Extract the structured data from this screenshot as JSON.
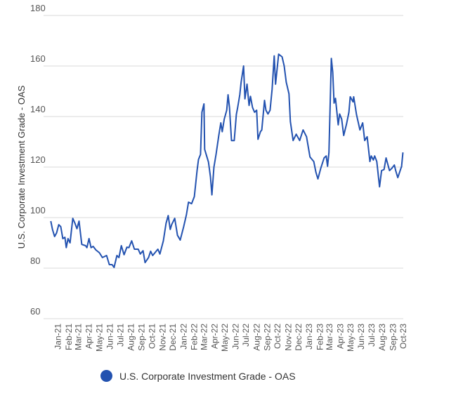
{
  "chart_data": {
    "type": "line",
    "title": "",
    "xlabel": "",
    "ylabel": "U.S. Corporate Investment Grade - OAS",
    "ylim": [
      60,
      180
    ],
    "yticks": [
      60,
      80,
      100,
      120,
      140,
      160,
      180
    ],
    "xlim": [
      "2020-11-20",
      "2023-10-01"
    ],
    "xticks": [
      "Jan-21",
      "Feb-21",
      "Mar-21",
      "Apr-21",
      "May-21",
      "Jun-21",
      "Jul-21",
      "Aug-21",
      "Sep-21",
      "Oct-21",
      "Nov-21",
      "Dec-21",
      "Jan-22",
      "Feb-22",
      "Mar-22",
      "Apr-22",
      "May-22",
      "Jun-22",
      "Jul-22",
      "Aug-22",
      "Sep-22",
      "Oct-22",
      "Nov-22",
      "Dec-22",
      "Jan-23",
      "Feb-23",
      "Mar-23",
      "Apr-23",
      "May-23",
      "Jun-23",
      "Jul-23",
      "Aug-23",
      "Sep-23",
      "Oct-23"
    ],
    "grid": true,
    "legend_position": "bottom",
    "series": [
      {
        "name": "U.S. Corporate Investment Grade - OAS",
        "color": "#2352b0",
        "points": [
          [
            "2020-12-11",
            98.6
          ],
          [
            "2020-12-16",
            95.3
          ],
          [
            "2020-12-22",
            92.5
          ],
          [
            "2020-12-28",
            94
          ],
          [
            "2021-01-03",
            97.2
          ],
          [
            "2021-01-09",
            96.4
          ],
          [
            "2021-01-15",
            91.7
          ],
          [
            "2021-01-21",
            92.2
          ],
          [
            "2021-01-25",
            88.1
          ],
          [
            "2021-01-30",
            91.7
          ],
          [
            "2021-02-05",
            90
          ],
          [
            "2021-02-13",
            99.7
          ],
          [
            "2021-02-19",
            97.8
          ],
          [
            "2021-02-25",
            95.6
          ],
          [
            "2021-03-03",
            98.6
          ],
          [
            "2021-03-11",
            89.4
          ],
          [
            "2021-03-22",
            88.9
          ],
          [
            "2021-03-26",
            88.1
          ],
          [
            "2021-04-01",
            91.7
          ],
          [
            "2021-04-07",
            88.1
          ],
          [
            "2021-04-13",
            88.6
          ],
          [
            "2021-04-21",
            87.2
          ],
          [
            "2021-05-01",
            86.1
          ],
          [
            "2021-05-10",
            84.2
          ],
          [
            "2021-05-22",
            85
          ],
          [
            "2021-05-30",
            81.4
          ],
          [
            "2021-06-07",
            81.4
          ],
          [
            "2021-06-13",
            80.3
          ],
          [
            "2021-06-21",
            85
          ],
          [
            "2021-06-27",
            84.2
          ],
          [
            "2021-07-04",
            88.9
          ],
          [
            "2021-07-12",
            85.3
          ],
          [
            "2021-07-20",
            88.3
          ],
          [
            "2021-07-26",
            88.1
          ],
          [
            "2021-08-03",
            90.8
          ],
          [
            "2021-08-11",
            87.5
          ],
          [
            "2021-08-22",
            87.5
          ],
          [
            "2021-08-28",
            85.6
          ],
          [
            "2021-09-05",
            86.9
          ],
          [
            "2021-09-11",
            82.2
          ],
          [
            "2021-09-21",
            84.2
          ],
          [
            "2021-09-27",
            86.7
          ],
          [
            "2021-10-03",
            85
          ],
          [
            "2021-10-18",
            87.5
          ],
          [
            "2021-10-24",
            85.6
          ],
          [
            "2021-11-03",
            90.8
          ],
          [
            "2021-11-11",
            97.8
          ],
          [
            "2021-11-17",
            100.8
          ],
          [
            "2021-11-23",
            95.3
          ],
          [
            "2021-11-27",
            97.2
          ],
          [
            "2021-12-06",
            99.7
          ],
          [
            "2021-12-14",
            93
          ],
          [
            "2021-12-22",
            91.1
          ],
          [
            "2022-01-01",
            96.4
          ],
          [
            "2022-01-09",
            101.1
          ],
          [
            "2022-01-15",
            106.1
          ],
          [
            "2022-01-24",
            105.5
          ],
          [
            "2022-02-01",
            108.3
          ],
          [
            "2022-02-09",
            118.6
          ],
          [
            "2022-02-13",
            123
          ],
          [
            "2022-02-19",
            125
          ],
          [
            "2022-02-23",
            141.7
          ],
          [
            "2022-03-01",
            145
          ],
          [
            "2022-03-03",
            127
          ],
          [
            "2022-03-14",
            122
          ],
          [
            "2022-03-20",
            116
          ],
          [
            "2022-03-24",
            109
          ],
          [
            "2022-03-30",
            120
          ],
          [
            "2022-04-05",
            125
          ],
          [
            "2022-04-13",
            132.5
          ],
          [
            "2022-04-19",
            137.5
          ],
          [
            "2022-04-23",
            134
          ],
          [
            "2022-04-29",
            139
          ],
          [
            "2022-05-06",
            142.5
          ],
          [
            "2022-05-10",
            148.6
          ],
          [
            "2022-05-14",
            143.6
          ],
          [
            "2022-05-20",
            130.5
          ],
          [
            "2022-05-28",
            130.5
          ],
          [
            "2022-06-03",
            140.8
          ],
          [
            "2022-06-07",
            143.6
          ],
          [
            "2022-06-13",
            148.6
          ],
          [
            "2022-06-17",
            153.6
          ],
          [
            "2022-06-24",
            160
          ],
          [
            "2022-06-28",
            147
          ],
          [
            "2022-07-04",
            152.8
          ],
          [
            "2022-07-10",
            144.4
          ],
          [
            "2022-07-14",
            148
          ],
          [
            "2022-07-20",
            143.6
          ],
          [
            "2022-07-26",
            141.7
          ],
          [
            "2022-08-01",
            142.5
          ],
          [
            "2022-08-05",
            131
          ],
          [
            "2022-08-12",
            134
          ],
          [
            "2022-08-16",
            134.7
          ],
          [
            "2022-08-24",
            146.4
          ],
          [
            "2022-08-28",
            142.5
          ],
          [
            "2022-09-03",
            141
          ],
          [
            "2022-09-09",
            142.5
          ],
          [
            "2022-09-15",
            150.8
          ],
          [
            "2022-09-21",
            164
          ],
          [
            "2022-09-25",
            152.8
          ],
          [
            "2022-10-04",
            164.7
          ],
          [
            "2022-10-14",
            163.6
          ],
          [
            "2022-10-20",
            160
          ],
          [
            "2022-10-26",
            153.6
          ],
          [
            "2022-11-03",
            149
          ],
          [
            "2022-11-07",
            138
          ],
          [
            "2022-11-15",
            130.5
          ],
          [
            "2022-11-24",
            133
          ],
          [
            "2022-12-04",
            130.5
          ],
          [
            "2022-12-14",
            134.7
          ],
          [
            "2022-12-24",
            132
          ],
          [
            "2023-01-03",
            124
          ],
          [
            "2023-01-14",
            122.2
          ],
          [
            "2023-01-20",
            118
          ],
          [
            "2023-01-26",
            115.3
          ],
          [
            "2023-02-03",
            119.4
          ],
          [
            "2023-02-13",
            123.6
          ],
          [
            "2023-02-19",
            124.4
          ],
          [
            "2023-02-23",
            120.3
          ],
          [
            "2023-02-27",
            125.8
          ],
          [
            "2023-03-04",
            152
          ],
          [
            "2023-03-06",
            163
          ],
          [
            "2023-03-10",
            157.5
          ],
          [
            "2023-03-14",
            145.3
          ],
          [
            "2023-03-18",
            147.2
          ],
          [
            "2023-03-26",
            136.7
          ],
          [
            "2023-03-30",
            141
          ],
          [
            "2023-04-05",
            139
          ],
          [
            "2023-04-11",
            132.5
          ],
          [
            "2023-04-19",
            137
          ],
          [
            "2023-04-26",
            141.7
          ],
          [
            "2023-04-30",
            147.8
          ],
          [
            "2023-05-08",
            145.8
          ],
          [
            "2023-05-10",
            147.8
          ],
          [
            "2023-05-18",
            140.8
          ],
          [
            "2023-05-28",
            134.7
          ],
          [
            "2023-06-05",
            137.5
          ],
          [
            "2023-06-11",
            130.5
          ],
          [
            "2023-06-18",
            132
          ],
          [
            "2023-06-26",
            122.2
          ],
          [
            "2023-06-30",
            124.4
          ],
          [
            "2023-07-06",
            122.8
          ],
          [
            "2023-07-10",
            124.4
          ],
          [
            "2023-07-16",
            122.2
          ],
          [
            "2023-07-24",
            112.2
          ],
          [
            "2023-07-30",
            118.6
          ],
          [
            "2023-08-06",
            119
          ],
          [
            "2023-08-12",
            123.6
          ],
          [
            "2023-08-22",
            118.6
          ],
          [
            "2023-08-28",
            119.4
          ],
          [
            "2023-09-05",
            120.8
          ],
          [
            "2023-09-09",
            118.6
          ],
          [
            "2023-09-15",
            115.8
          ],
          [
            "2023-09-26",
            120.3
          ],
          [
            "2023-09-30",
            125.8
          ]
        ]
      }
    ]
  }
}
